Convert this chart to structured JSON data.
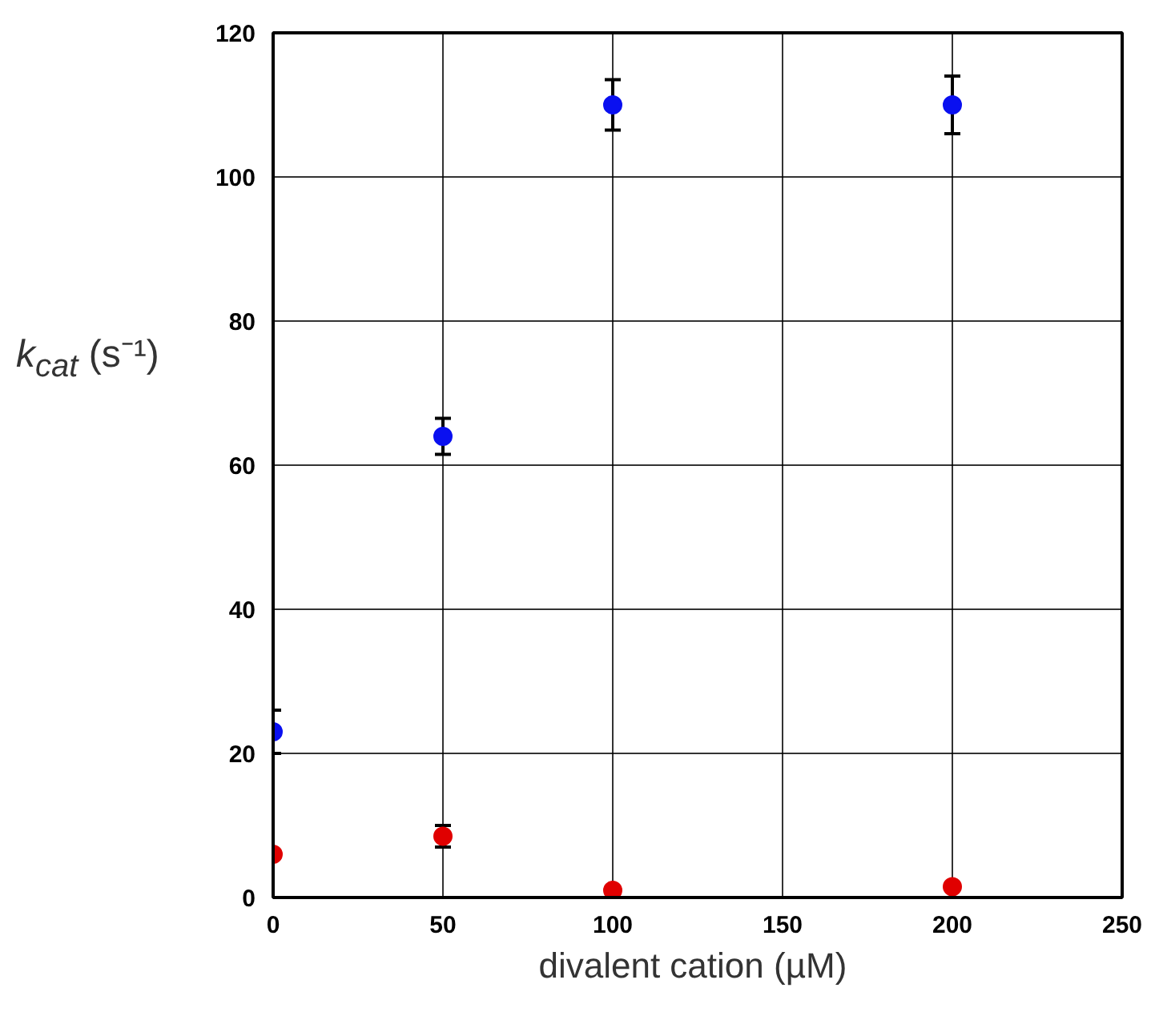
{
  "chart_data": {
    "type": "scatter",
    "xlabel": "divalent  cation (µM)",
    "ylabel": "k$_{cat}$ (s⁻¹)",
    "x": [
      0,
      50,
      100,
      200
    ],
    "series": [
      {
        "color": "#0a10f0",
        "values": [
          23,
          64,
          110,
          110
        ],
        "errors": [
          3,
          2.5,
          3.5,
          4
        ]
      },
      {
        "color": "#e00000",
        "values": [
          6,
          8.5,
          1,
          1.5
        ],
        "errors": [
          null,
          1.5,
          null,
          null
        ]
      }
    ],
    "xlim": [
      0,
      250
    ],
    "xticks": [
      0,
      50,
      100,
      150,
      200,
      250
    ],
    "ylim": [
      0,
      120
    ],
    "yticks": [
      0,
      20,
      40,
      60,
      80,
      100,
      120
    ],
    "grid": true,
    "marker": "circle"
  }
}
